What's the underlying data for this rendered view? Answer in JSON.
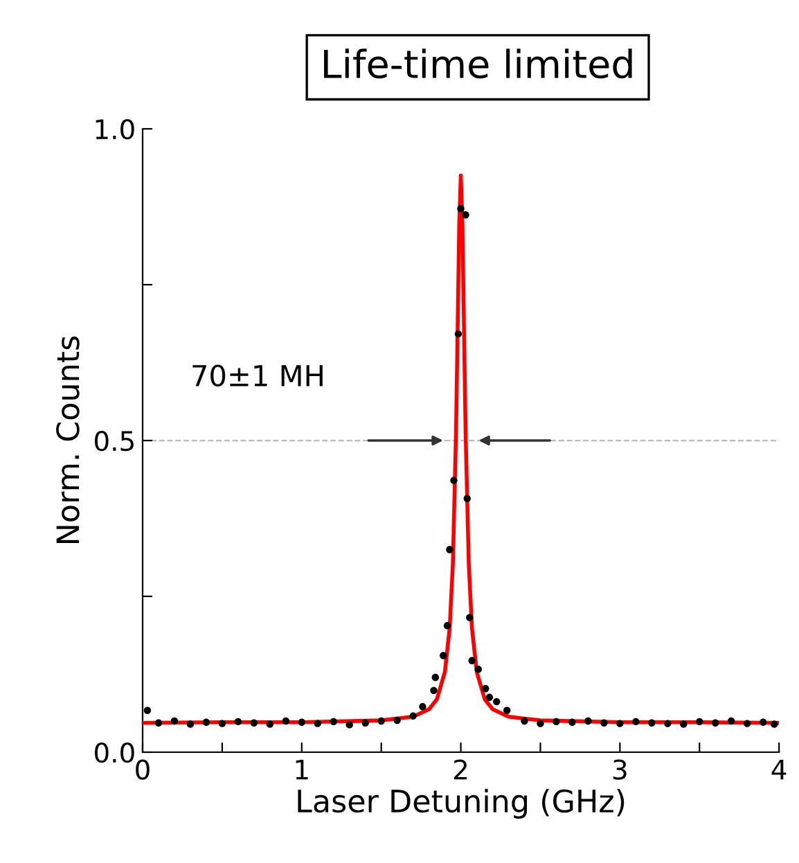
{
  "chart_data": {
    "type": "scatter",
    "title": "Life-time limited",
    "xlabel": "Laser Detuning (GHz)",
    "ylabel": "Norm. Counts",
    "annotations": [
      "70±1 MH"
    ],
    "xlim": [
      0,
      4
    ],
    "ylim": [
      0,
      1.0
    ],
    "xticks": [
      0,
      {
        "value": 0.5,
        "label": null
      },
      1,
      {
        "value": 1.5,
        "label": null
      },
      2,
      {
        "value": 2.5,
        "label": null
      },
      3,
      {
        "value": 3.5,
        "label": null
      },
      4
    ],
    "yticks": [
      {
        "value": 0,
        "label": "0.0"
      },
      {
        "value": 0.25,
        "label": null
      },
      0.5,
      {
        "value": 0.75,
        "label": null
      },
      {
        "value": 1,
        "label": "1.0"
      }
    ],
    "ref_lines": [
      {
        "axis": "y",
        "value": 0.5,
        "label": null,
        "color": "#bbbbbb",
        "line_style": "dashed"
      }
    ],
    "grid": false,
    "legend": false,
    "series": [
      {
        "color": "#000000",
        "marker": "circle",
        "x": [
          0.03,
          0.1,
          0.2,
          0.3,
          0.4,
          0.5,
          0.6,
          0.7,
          0.8,
          0.9,
          1.0,
          1.1,
          1.2,
          1.3,
          1.4,
          1.5,
          1.6,
          1.7,
          1.76,
          1.83,
          1.84,
          1.89,
          1.915,
          1.93,
          1.956,
          1.984,
          2.0,
          2.03,
          2.04,
          2.055,
          2.07,
          2.11,
          2.155,
          2.18,
          2.225,
          2.29,
          2.4,
          2.5,
          2.6,
          2.7,
          2.8,
          2.9,
          3.0,
          3.1,
          3.2,
          3.3,
          3.4,
          3.5,
          3.6,
          3.7,
          3.8,
          3.9,
          3.97
        ],
        "values": [
          0.067,
          0.047,
          0.05,
          0.045,
          0.048,
          0.046,
          0.049,
          0.047,
          0.045,
          0.05,
          0.048,
          0.046,
          0.049,
          0.044,
          0.047,
          0.05,
          0.051,
          0.058,
          0.073,
          0.099,
          0.12,
          0.155,
          0.203,
          0.325,
          0.436,
          0.671,
          0.872,
          0.862,
          0.407,
          0.216,
          0.147,
          0.133,
          0.102,
          0.088,
          0.081,
          0.067,
          0.05,
          0.046,
          0.049,
          0.048,
          0.05,
          0.047,
          0.046,
          0.049,
          0.047,
          0.046,
          0.045,
          0.049,
          0.047,
          0.05,
          0.046,
          0.048,
          0.045
        ]
      },
      {
        "type": "line",
        "color": "#ff0000",
        "marker": "none",
        "line_style": "solid",
        "x": [
          0,
          0.5,
          1.0,
          1.5,
          1.7,
          1.8,
          1.85,
          1.9,
          1.93,
          1.95,
          1.97,
          1.98,
          1.99,
          2.0,
          2.01,
          2.02,
          2.03,
          2.05,
          2.07,
          2.1,
          2.15,
          2.2,
          2.3,
          2.5,
          3.0,
          3.5,
          4.0
        ],
        "values": [
          0.047,
          0.048,
          0.048,
          0.051,
          0.057,
          0.069,
          0.085,
          0.129,
          0.199,
          0.302,
          0.514,
          0.678,
          0.847,
          0.925,
          0.847,
          0.678,
          0.514,
          0.302,
          0.199,
          0.129,
          0.085,
          0.069,
          0.057,
          0.051,
          0.048,
          0.048,
          0.047
        ]
      }
    ]
  }
}
